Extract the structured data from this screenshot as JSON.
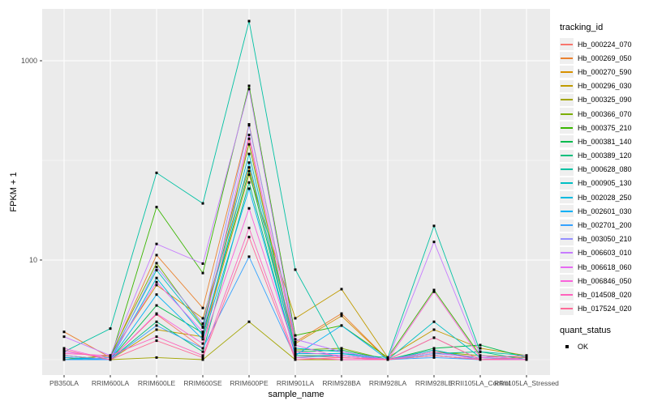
{
  "chart_data": {
    "type": "line",
    "title": "",
    "xlabel": "sample_name",
    "ylabel": "FPKM + 1",
    "y_scale": "log10",
    "y_major_ticks": [
      {
        "value": 1000,
        "label": "1000"
      },
      {
        "value": 10,
        "label": "10"
      }
    ],
    "y_minor_gridlines": [
      1,
      100
    ],
    "grid_on": true,
    "panel_bg": "#ebebeb",
    "grid_color": "#ffffff",
    "tick_color": "#333333",
    "tick_label_color": "#4d4d4d",
    "point_color": "#000000",
    "legend_position": "right",
    "categories": [
      "PB350LA",
      "RRIM600LA",
      "RRIM600LE",
      "RRIM600SE",
      "RRIM600PE",
      "RRIM901LA",
      "RRIM928BA",
      "RRIM928LA",
      "RRIM928LE",
      "RRII105LA_Control",
      "RRII105LA_Stressed"
    ],
    "series": [
      {
        "name": "Hb_000224_070",
        "color": "#F8766D",
        "values": [
          1.1,
          1.0,
          2.85,
          1.3,
          165,
          1.1,
          1.05,
          1.0,
          1.1,
          1.0,
          1.0
        ]
      },
      {
        "name": "Hb_000269_050",
        "color": "#EA8331",
        "values": [
          1.9,
          1.05,
          11.2,
          3.3,
          230,
          1.5,
          2.9,
          1.0,
          1.2,
          1.05,
          1.0
        ]
      },
      {
        "name": "Hb_000270_590",
        "color": "#D89000",
        "values": [
          1.0,
          1.1,
          5.6,
          2.6,
          85,
          1.45,
          2.75,
          1.0,
          1.25,
          1.0,
          1.0
        ]
      },
      {
        "name": "Hb_000296_030",
        "color": "#C09B00",
        "values": [
          1.05,
          1.0,
          2.0,
          1.7,
          72,
          2.6,
          5.1,
          1.05,
          2.0,
          1.3,
          1.1
        ]
      },
      {
        "name": "Hb_000325_090",
        "color": "#A3A500",
        "values": [
          1.0,
          1.0,
          1.05,
          1.0,
          2.4,
          1.0,
          1.0,
          1.0,
          1.66,
          1.0,
          1.0
        ]
      },
      {
        "name": "Hb_000366_070",
        "color": "#7CAE00",
        "values": [
          1.0,
          1.1,
          9.3,
          2.15,
          145,
          1.25,
          1.3,
          1.0,
          1.2,
          1.1,
          1.05
        ]
      },
      {
        "name": "Hb_000375_210",
        "color": "#39B600",
        "values": [
          1.1,
          1.0,
          34,
          7.4,
          560,
          1.75,
          2.2,
          1.05,
          5.0,
          1.1,
          1.0
        ]
      },
      {
        "name": "Hb_000381_140",
        "color": "#00BB4E",
        "values": [
          1.0,
          1.0,
          3.5,
          1.85,
          78,
          1.2,
          1.25,
          1.0,
          1.3,
          1.4,
          1.05
        ]
      },
      {
        "name": "Hb_000389_120",
        "color": "#00BF7D",
        "values": [
          1.05,
          1.0,
          2.4,
          1.2,
          60,
          1.1,
          1.1,
          1.0,
          1.15,
          1.2,
          1.0
        ]
      },
      {
        "name": "Hb_000628_080",
        "color": "#00C1A3",
        "values": [
          1.2,
          2.05,
          75,
          37,
          2500,
          8,
          1.15,
          1.05,
          22,
          1.2,
          1.1
        ]
      },
      {
        "name": "Hb_000905_130",
        "color": "#00BFC4",
        "values": [
          1.0,
          1.05,
          7.9,
          2.1,
          116,
          1.3,
          1.2,
          1.0,
          2.4,
          1.05,
          1.0
        ]
      },
      {
        "name": "Hb_002028_250",
        "color": "#00BAE0",
        "values": [
          1.0,
          1.0,
          6.6,
          1.75,
          95,
          1.15,
          1.15,
          1.0,
          1.25,
          1.0,
          1.0
        ]
      },
      {
        "name": "Hb_002601_030",
        "color": "#00B0F6",
        "values": [
          1.05,
          1.0,
          4.5,
          1.6,
          52,
          1.1,
          2.2,
          1.0,
          1.1,
          1.0,
          1.05
        ]
      },
      {
        "name": "Hb_002701_200",
        "color": "#35A2FF",
        "values": [
          1.0,
          1.0,
          2.2,
          1.3,
          10.8,
          1.05,
          1.1,
          1.0,
          1.05,
          1.0,
          1.0
        ]
      },
      {
        "name": "Hb_003050_210",
        "color": "#9590FF",
        "values": [
          1.1,
          1.0,
          8.5,
          2.3,
          225,
          1.6,
          1.2,
          1.0,
          1.15,
          1.05,
          1.0
        ]
      },
      {
        "name": "Hb_006603_010",
        "color": "#C77CFF",
        "values": [
          1.7,
          1.1,
          14.5,
          9.2,
          520,
          1.6,
          1.2,
          1.0,
          15.2,
          1.1,
          1.0
        ]
      },
      {
        "name": "Hb_006618_060",
        "color": "#E76BF3",
        "values": [
          1.2,
          1.05,
          6.0,
          1.9,
          180,
          1.4,
          1.05,
          1.0,
          1.2,
          1.0,
          1.0
        ]
      },
      {
        "name": "Hb_006846_050",
        "color": "#FA62DB",
        "values": [
          1.3,
          1.0,
          2.9,
          1.45,
          33,
          1.2,
          1.1,
          1.0,
          4.8,
          1.05,
          1.1
        ]
      },
      {
        "name": "Hb_014508_020",
        "color": "#FF62BC",
        "values": [
          1.15,
          1.1,
          1.7,
          1.1,
          21,
          1.05,
          1.0,
          1.0,
          1.66,
          1.0,
          1.0
        ]
      },
      {
        "name": "Hb_017524_020",
        "color": "#FF6A98",
        "values": [
          1.25,
          1.0,
          1.55,
          1.05,
          17,
          1.0,
          1.05,
          1.0,
          1.1,
          1.0,
          1.05
        ]
      }
    ],
    "legend": {
      "color_title": "tracking_id",
      "shape_title": "quant_status",
      "shape_items": [
        {
          "label": "OK"
        }
      ]
    }
  }
}
